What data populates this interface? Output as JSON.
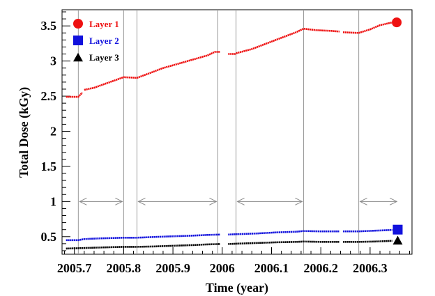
{
  "chart_data": {
    "type": "line",
    "xlabel": "Time (year)",
    "ylabel": "Total Dose (kGy)",
    "xlim": [
      2005.675,
      2006.385
    ],
    "ylim": [
      0.25,
      3.73
    ],
    "x_ticks": [
      {
        "value": 2005.7,
        "label": "2005.7"
      },
      {
        "value": 2005.8,
        "label": "2005.8"
      },
      {
        "value": 2005.9,
        "label": "2005.9"
      },
      {
        "value": 2006.0,
        "label": "2006"
      },
      {
        "value": 2006.1,
        "label": "2006.1"
      },
      {
        "value": 2006.2,
        "label": "2006.2"
      },
      {
        "value": 2006.3,
        "label": "2006.3"
      }
    ],
    "y_ticks": [
      {
        "value": 0.5,
        "label": "0.5"
      },
      {
        "value": 1.0,
        "label": "1"
      },
      {
        "value": 1.5,
        "label": "1.5"
      },
      {
        "value": 2.0,
        "label": "2"
      },
      {
        "value": 2.5,
        "label": "2.5"
      },
      {
        "value": 3.0,
        "label": "3"
      },
      {
        "value": 3.5,
        "label": "3.5"
      }
    ],
    "vertical_lines": [
      2005.708,
      2005.8,
      2005.827,
      2005.991,
      2006.028,
      2006.165,
      2006.277
    ],
    "range_arrows": [
      {
        "from": 2005.708,
        "to": 2005.8,
        "y": 1.0
      },
      {
        "from": 2005.827,
        "to": 2005.991,
        "y": 1.0
      },
      {
        "from": 2006.028,
        "to": 2006.165,
        "y": 1.0
      },
      {
        "from": 2006.277,
        "to": 2006.357,
        "y": 1.0
      }
    ],
    "legend_position": "top-left",
    "series": [
      {
        "name": "Layer 1",
        "color": "#ee1111",
        "marker": "circle",
        "segments": [
          [
            [
              2005.683,
              2.49
            ],
            [
              2005.708,
              2.49
            ],
            [
              2005.712,
              2.52
            ],
            [
              2005.716,
              2.55
            ]
          ],
          [
            [
              2005.72,
              2.59
            ],
            [
              2005.74,
              2.62
            ],
            [
              2005.76,
              2.67
            ],
            [
              2005.78,
              2.72
            ],
            [
              2005.8,
              2.77
            ],
            [
              2005.827,
              2.76
            ],
            [
              2005.85,
              2.82
            ],
            [
              2005.88,
              2.9
            ],
            [
              2005.91,
              2.96
            ],
            [
              2005.94,
              3.02
            ],
            [
              2005.97,
              3.08
            ],
            [
              2005.985,
              3.13
            ],
            [
              2005.996,
              3.13
            ]
          ],
          [
            [
              2006.012,
              3.1
            ],
            [
              2006.028,
              3.1
            ]
          ],
          [
            [
              2006.028,
              3.11
            ],
            [
              2006.06,
              3.17
            ],
            [
              2006.09,
              3.25
            ],
            [
              2006.12,
              3.33
            ],
            [
              2006.15,
              3.41
            ],
            [
              2006.165,
              3.46
            ],
            [
              2006.19,
              3.44
            ],
            [
              2006.22,
              3.43
            ],
            [
              2006.238,
              3.42
            ]
          ],
          [
            [
              2006.245,
              3.41
            ],
            [
              2006.277,
              3.4
            ],
            [
              2006.3,
              3.45
            ],
            [
              2006.32,
              3.51
            ],
            [
              2006.345,
              3.55
            ]
          ]
        ],
        "marker_point": [
          2006.354,
          3.55
        ]
      },
      {
        "name": "Layer 2",
        "color": "#1111dd",
        "marker": "square",
        "segments": [
          [
            [
              2005.683,
              0.45
            ],
            [
              2005.708,
              0.45
            ],
            [
              2005.72,
              0.465
            ],
            [
              2005.75,
              0.475
            ],
            [
              2005.8,
              0.485
            ],
            [
              2005.827,
              0.485
            ],
            [
              2005.86,
              0.495
            ],
            [
              2005.9,
              0.505
            ],
            [
              2005.94,
              0.515
            ],
            [
              2005.97,
              0.525
            ],
            [
              2005.996,
              0.53
            ]
          ],
          [
            [
              2006.012,
              0.53
            ],
            [
              2006.028,
              0.535
            ],
            [
              2006.07,
              0.545
            ],
            [
              2006.11,
              0.56
            ],
            [
              2006.15,
              0.57
            ],
            [
              2006.165,
              0.58
            ],
            [
              2006.2,
              0.575
            ],
            [
              2006.238,
              0.575
            ]
          ],
          [
            [
              2006.245,
              0.575
            ],
            [
              2006.277,
              0.575
            ],
            [
              2006.31,
              0.585
            ],
            [
              2006.345,
              0.595
            ]
          ]
        ],
        "marker_point": [
          2006.356,
          0.6
        ]
      },
      {
        "name": "Layer 3",
        "color": "#000000",
        "marker": "triangle",
        "segments": [
          [
            [
              2005.683,
              0.33
            ],
            [
              2005.708,
              0.335
            ],
            [
              2005.75,
              0.345
            ],
            [
              2005.8,
              0.355
            ],
            [
              2005.827,
              0.355
            ],
            [
              2005.86,
              0.36
            ],
            [
              2005.9,
              0.37
            ],
            [
              2005.94,
              0.38
            ],
            [
              2005.97,
              0.39
            ],
            [
              2005.996,
              0.395
            ]
          ],
          [
            [
              2006.012,
              0.395
            ],
            [
              2006.028,
              0.4
            ],
            [
              2006.07,
              0.41
            ],
            [
              2006.11,
              0.42
            ],
            [
              2006.15,
              0.425
            ],
            [
              2006.165,
              0.43
            ],
            [
              2006.2,
              0.425
            ],
            [
              2006.238,
              0.425
            ]
          ],
          [
            [
              2006.245,
              0.425
            ],
            [
              2006.277,
              0.425
            ],
            [
              2006.31,
              0.43
            ],
            [
              2006.345,
              0.44
            ]
          ]
        ],
        "marker_point": [
          2006.356,
          0.45
        ]
      }
    ]
  }
}
